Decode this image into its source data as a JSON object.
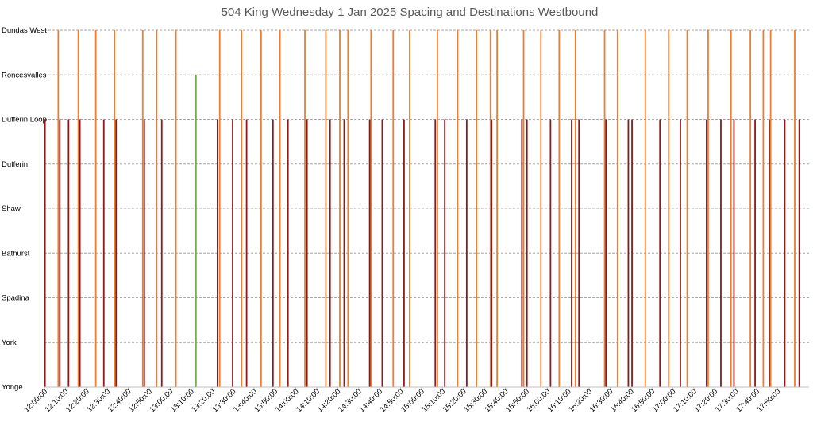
{
  "chart_data": {
    "type": "bar",
    "title": "504 King Wednesday 1 Jan 2025 Spacing and Destinations Westbound",
    "y_categories": [
      "Yonge",
      "York",
      "Spadina",
      "Bathurst",
      "Shaw",
      "Dufferin",
      "Dufferin Loop",
      "Roncesvalles",
      "Dundas West"
    ],
    "x_tick_labels": [
      "12:00:00",
      "12:10:00",
      "12:20:00",
      "12:30:00",
      "12:40:00",
      "12:50:00",
      "13:00:00",
      "13:10:00",
      "13:20:00",
      "13:30:00",
      "13:40:00",
      "13:50:00",
      "14:00:00",
      "14:10:00",
      "14:20:00",
      "14:30:00",
      "14:40:00",
      "14:50:00",
      "15:00:00",
      "15:10:00",
      "15:20:00",
      "15:30:00",
      "15:40:00",
      "15:50:00",
      "16:00:00",
      "16:10:00",
      "16:20:00",
      "16:30:00",
      "16:40:00",
      "16:50:00",
      "17:00:00",
      "17:10:00",
      "17:20:00",
      "17:30:00",
      "17:40:00",
      "17:50:00"
    ],
    "x_range": [
      "12:00:00",
      "18:05:00"
    ],
    "grid": true,
    "colors": {
      "Dufferin Loop": "#8b1a1a",
      "Roncesvalles": "#70ad47",
      "Dundas West": "#ed7d31"
    },
    "trips": [
      {
        "time": "12:00:15",
        "destination": "Dufferin Loop"
      },
      {
        "time": "12:06:35",
        "destination": "Dundas West"
      },
      {
        "time": "12:07:20",
        "destination": "Dufferin Loop"
      },
      {
        "time": "12:11:30",
        "destination": "Dufferin Loop"
      },
      {
        "time": "12:16:10",
        "destination": "Dundas West"
      },
      {
        "time": "12:16:55",
        "destination": "Dufferin Loop"
      },
      {
        "time": "12:24:30",
        "destination": "Dundas West"
      },
      {
        "time": "12:28:20",
        "destination": "Dufferin Loop"
      },
      {
        "time": "12:33:25",
        "destination": "Dundas West"
      },
      {
        "time": "12:34:10",
        "destination": "Dufferin Loop"
      },
      {
        "time": "12:46:55",
        "destination": "Dundas West"
      },
      {
        "time": "12:47:40",
        "destination": "Dufferin Loop"
      },
      {
        "time": "12:53:35",
        "destination": "Dundas West"
      },
      {
        "time": "12:56:00",
        "destination": "Dufferin Loop"
      },
      {
        "time": "13:02:45",
        "destination": "Dundas West"
      },
      {
        "time": "13:12:20",
        "destination": "Roncesvalles"
      },
      {
        "time": "13:22:35",
        "destination": "Dufferin Loop"
      },
      {
        "time": "13:23:40",
        "destination": "Dundas West"
      },
      {
        "time": "13:29:50",
        "destination": "Dufferin Loop"
      },
      {
        "time": "13:34:05",
        "destination": "Dundas West"
      },
      {
        "time": "13:36:30",
        "destination": "Dufferin Loop"
      },
      {
        "time": "13:43:25",
        "destination": "Dundas West"
      },
      {
        "time": "13:49:05",
        "destination": "Dufferin Loop"
      },
      {
        "time": "13:52:25",
        "destination": "Dundas West"
      },
      {
        "time": "13:56:15",
        "destination": "Dufferin Loop"
      },
      {
        "time": "14:04:20",
        "destination": "Dundas West"
      },
      {
        "time": "14:05:20",
        "destination": "Dufferin Loop"
      },
      {
        "time": "14:14:20",
        "destination": "Dundas West"
      },
      {
        "time": "14:16:20",
        "destination": "Dufferin Loop"
      },
      {
        "time": "14:21:00",
        "destination": "Dundas West"
      },
      {
        "time": "14:23:05",
        "destination": "Dufferin Loop"
      },
      {
        "time": "14:24:55",
        "destination": "Dundas West"
      },
      {
        "time": "14:35:15",
        "destination": "Dufferin Loop"
      },
      {
        "time": "14:35:55",
        "destination": "Dundas West"
      },
      {
        "time": "14:41:15",
        "destination": "Dufferin Loop"
      },
      {
        "time": "14:46:30",
        "destination": "Dundas West"
      },
      {
        "time": "14:51:40",
        "destination": "Dufferin Loop"
      },
      {
        "time": "14:54:20",
        "destination": "Dundas West"
      },
      {
        "time": "15:06:35",
        "destination": "Dufferin Loop"
      },
      {
        "time": "15:07:35",
        "destination": "Dundas West"
      },
      {
        "time": "15:11:05",
        "destination": "Dufferin Loop"
      },
      {
        "time": "15:17:15",
        "destination": "Dundas West"
      },
      {
        "time": "15:21:35",
        "destination": "Dufferin Loop"
      },
      {
        "time": "15:26:15",
        "destination": "Dundas West"
      },
      {
        "time": "15:32:55",
        "destination": "Dundas West"
      },
      {
        "time": "15:33:30",
        "destination": "Dufferin Loop"
      },
      {
        "time": "15:36:05",
        "destination": "Dundas West"
      },
      {
        "time": "15:47:55",
        "destination": "Dufferin Loop"
      },
      {
        "time": "15:48:45",
        "destination": "Dundas West"
      },
      {
        "time": "15:50:20",
        "destination": "Dufferin Loop"
      },
      {
        "time": "15:57:00",
        "destination": "Dundas West"
      },
      {
        "time": "16:01:35",
        "destination": "Dufferin Loop"
      },
      {
        "time": "16:05:45",
        "destination": "Dundas West"
      },
      {
        "time": "16:11:40",
        "destination": "Dufferin Loop"
      },
      {
        "time": "16:13:30",
        "destination": "Dundas West"
      },
      {
        "time": "16:15:10",
        "destination": "Dufferin Loop"
      },
      {
        "time": "16:27:25",
        "destination": "Dundas West"
      },
      {
        "time": "16:28:05",
        "destination": "Dufferin Loop"
      },
      {
        "time": "16:33:35",
        "destination": "Dundas West"
      },
      {
        "time": "16:38:45",
        "destination": "Dufferin Loop"
      },
      {
        "time": "16:40:30",
        "destination": "Dufferin Loop"
      },
      {
        "time": "16:46:50",
        "destination": "Dundas West"
      },
      {
        "time": "16:53:50",
        "destination": "Dufferin Loop"
      },
      {
        "time": "16:58:00",
        "destination": "Dundas West"
      },
      {
        "time": "17:03:35",
        "destination": "Dufferin Loop"
      },
      {
        "time": "17:06:50",
        "destination": "Dundas West"
      },
      {
        "time": "17:16:05",
        "destination": "Dufferin Loop"
      },
      {
        "time": "17:16:50",
        "destination": "Dundas West"
      },
      {
        "time": "17:22:55",
        "destination": "Dufferin Loop"
      },
      {
        "time": "17:27:45",
        "destination": "Dundas West"
      },
      {
        "time": "17:29:10",
        "destination": "Dufferin Loop"
      },
      {
        "time": "17:37:00",
        "destination": "Dundas West"
      },
      {
        "time": "17:39:15",
        "destination": "Dufferin Loop"
      },
      {
        "time": "17:43:10",
        "destination": "Dundas West"
      },
      {
        "time": "17:46:10",
        "destination": "Dufferin Loop"
      },
      {
        "time": "17:46:40",
        "destination": "Dundas West"
      },
      {
        "time": "17:53:25",
        "destination": "Dufferin Loop"
      },
      {
        "time": "17:58:10",
        "destination": "Dundas West"
      },
      {
        "time": "18:00:20",
        "destination": "Dufferin Loop"
      }
    ]
  }
}
